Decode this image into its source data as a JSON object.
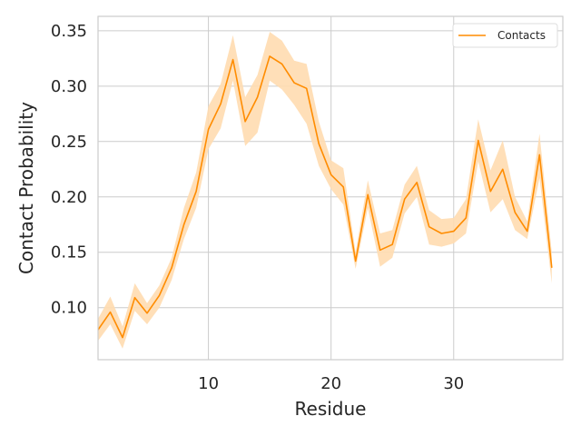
{
  "chart_data": {
    "type": "line",
    "title": "",
    "xlabel": "Residue",
    "ylabel": "Contact Probability",
    "xlim": [
      1,
      38.9
    ],
    "ylim": [
      0.053,
      0.363
    ],
    "xticks": [
      10,
      20,
      30
    ],
    "yticks": [
      0.1,
      0.15,
      0.2,
      0.25,
      0.3,
      0.35
    ],
    "ytick_labels": [
      "0.10",
      "0.15",
      "0.20",
      "0.25",
      "0.30",
      "0.35"
    ],
    "grid": true,
    "legend": {
      "position": "top-right",
      "entries": [
        "Contacts"
      ]
    },
    "x": [
      1,
      2,
      3,
      4,
      5,
      6,
      7,
      8,
      9,
      10,
      11,
      12,
      13,
      14,
      15,
      16,
      17,
      18,
      19,
      20,
      21,
      22,
      23,
      24,
      25,
      26,
      27,
      28,
      29,
      30,
      31,
      32,
      33,
      34,
      35,
      36,
      37,
      38
    ],
    "series": [
      {
        "name": "Contacts",
        "color": "#ff8c00",
        "band_color": "#ffdcb0",
        "values": [
          0.08,
          0.096,
          0.073,
          0.109,
          0.095,
          0.111,
          0.136,
          0.175,
          0.205,
          0.261,
          0.284,
          0.324,
          0.268,
          0.29,
          0.327,
          0.32,
          0.303,
          0.298,
          0.248,
          0.22,
          0.209,
          0.142,
          0.202,
          0.152,
          0.157,
          0.198,
          0.213,
          0.173,
          0.167,
          0.169,
          0.181,
          0.251,
          0.205,
          0.225,
          0.186,
          0.169,
          0.238,
          0.136
        ],
        "lower": [
          0.07,
          0.085,
          0.063,
          0.097,
          0.085,
          0.1,
          0.125,
          0.162,
          0.19,
          0.243,
          0.262,
          0.305,
          0.246,
          0.258,
          0.305,
          0.297,
          0.283,
          0.266,
          0.228,
          0.207,
          0.193,
          0.135,
          0.19,
          0.137,
          0.145,
          0.185,
          0.2,
          0.157,
          0.155,
          0.158,
          0.167,
          0.232,
          0.186,
          0.198,
          0.17,
          0.162,
          0.217,
          0.122
        ],
        "upper": [
          0.09,
          0.11,
          0.083,
          0.122,
          0.104,
          0.12,
          0.145,
          0.19,
          0.222,
          0.282,
          0.302,
          0.346,
          0.29,
          0.31,
          0.349,
          0.341,
          0.323,
          0.32,
          0.268,
          0.233,
          0.226,
          0.15,
          0.215,
          0.167,
          0.17,
          0.211,
          0.228,
          0.188,
          0.18,
          0.181,
          0.198,
          0.27,
          0.224,
          0.251,
          0.2,
          0.178,
          0.257,
          0.15
        ]
      }
    ]
  }
}
